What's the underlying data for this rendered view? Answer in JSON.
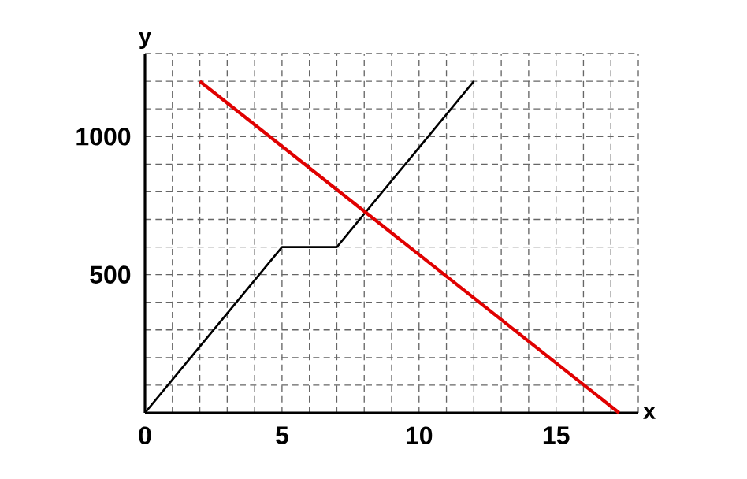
{
  "chart_data": {
    "type": "line",
    "xlabel": "x",
    "ylabel": "y",
    "xlim": [
      0,
      18
    ],
    "ylim": [
      0,
      1300
    ],
    "xticks": [
      0,
      {
        "value": 1,
        "label": null
      },
      {
        "value": 2,
        "label": null
      },
      {
        "value": 3,
        "label": null
      },
      {
        "value": 4,
        "label": null
      },
      5,
      {
        "value": 6,
        "label": null
      },
      {
        "value": 7,
        "label": null
      },
      {
        "value": 8,
        "label": null
      },
      {
        "value": 9,
        "label": null
      },
      10,
      {
        "value": 11,
        "label": null
      },
      {
        "value": 12,
        "label": null
      },
      {
        "value": 13,
        "label": null
      },
      {
        "value": 14,
        "label": null
      },
      15,
      {
        "value": 16,
        "label": null
      },
      {
        "value": 17,
        "label": null
      },
      {
        "value": 18,
        "label": null
      }
    ],
    "yticks": [
      {
        "value": 100,
        "label": null
      },
      {
        "value": 200,
        "label": null
      },
      {
        "value": 300,
        "label": null
      },
      {
        "value": 400,
        "label": null
      },
      500,
      {
        "value": 600,
        "label": null
      },
      {
        "value": 700,
        "label": null
      },
      {
        "value": 800,
        "label": null
      },
      {
        "value": 900,
        "label": null
      },
      1000,
      {
        "value": 1100,
        "label": null
      },
      {
        "value": 1200,
        "label": null
      },
      {
        "value": 1300,
        "label": null
      }
    ],
    "grid": true,
    "marker": "none",
    "line_style": "solid",
    "series": [
      {
        "color": "#000000",
        "x": [
          0,
          5,
          7,
          12
        ],
        "values": [
          0,
          600,
          600,
          1200
        ]
      },
      {
        "color": "#e00000",
        "x": [
          2,
          17.3
        ],
        "values": [
          1200,
          0
        ]
      }
    ]
  }
}
